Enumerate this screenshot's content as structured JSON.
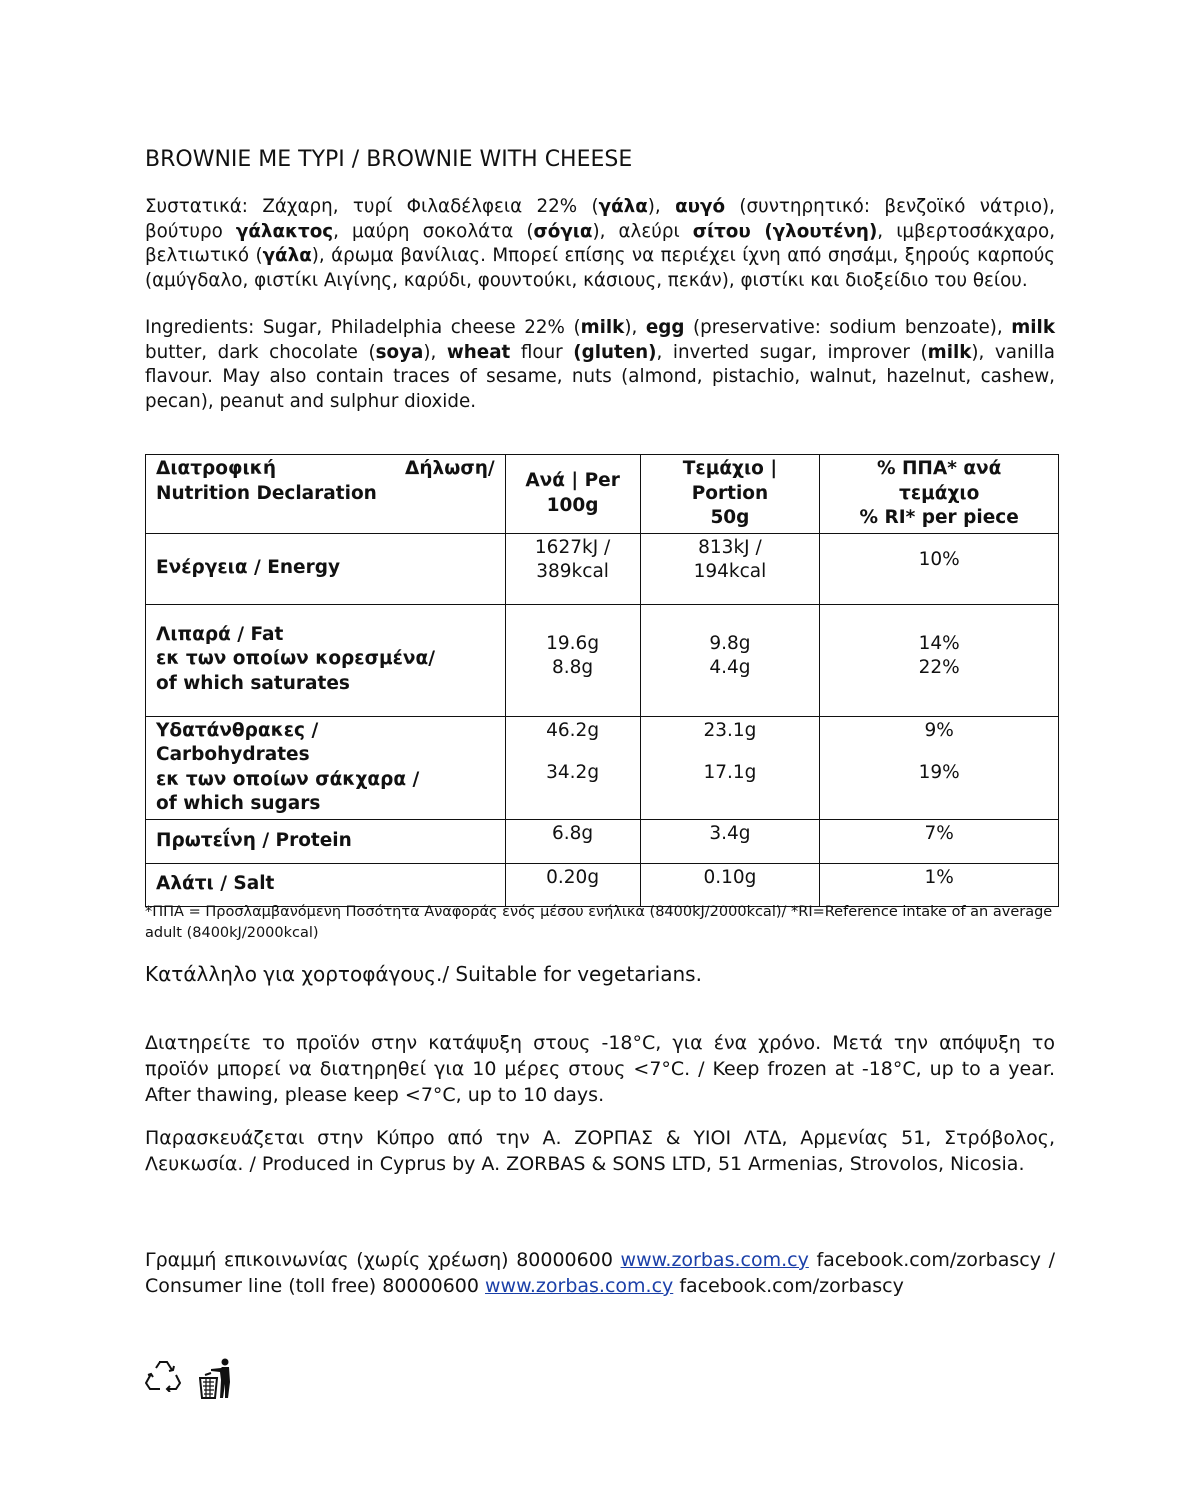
{
  "title": "BROWNIE ME TYPI / BROWNIE WITH CHEESE",
  "ingredients_gr": [
    {
      "t": "Συστατικά: Ζάχαρη, τυρί Φιλαδέλφεια 22% ("
    },
    {
      "t": "γάλα",
      "b": true
    },
    {
      "t": "), "
    },
    {
      "t": "αυγό",
      "b": true
    },
    {
      "t": " (συντηρητικό: βενζοϊκό νάτριο), βούτυρο "
    },
    {
      "t": "γάλακτος",
      "b": true
    },
    {
      "t": ", μαύρη σοκολάτα ("
    },
    {
      "t": "σόγια",
      "b": true
    },
    {
      "t": "), αλεύρι "
    },
    {
      "t": "σίτου (γλουτένη)",
      "b": true
    },
    {
      "t": ", ιμβερτοσάκχαρο, βελτιωτικό ("
    },
    {
      "t": "γάλα",
      "b": true
    },
    {
      "t": "), άρωμα βανίλιας. Μπορεί επίσης να περιέχει ίχνη από σησάμι, ξηρούς καρπούς (αμύγδαλο, φιστίκι Αιγίνης, καρύδι, φουντούκι, κάσιους, πεκάν), φιστίκι και διοξείδιο του θείου."
    }
  ],
  "ingredients_en": [
    {
      "t": "Ingredients: Sugar, Philadelphia cheese 22% ("
    },
    {
      "t": "milk",
      "b": true
    },
    {
      "t": "), "
    },
    {
      "t": "egg",
      "b": true
    },
    {
      "t": " (preservative: sodium benzoate), "
    },
    {
      "t": "milk",
      "b": true
    },
    {
      "t": " butter, dark chocolate ("
    },
    {
      "t": "soya",
      "b": true
    },
    {
      "t": "), "
    },
    {
      "t": "wheat",
      "b": true
    },
    {
      "t": " flour "
    },
    {
      "t": "(gluten)",
      "b": true
    },
    {
      "t": ", inverted sugar, improver ("
    },
    {
      "t": "milk",
      "b": true
    },
    {
      "t": "), vanilla flavour. May also contain traces of sesame, nuts (almond, pistachio, walnut, hazelnut, cashew, pecan), peanut and sulphur dioxide."
    }
  ],
  "table": {
    "header": {
      "col1_left": "Διατροφική",
      "col1_right": "Δήλωση/",
      "col1_line2": "Nutrition Declaration",
      "col2": [
        "Ανά | Per",
        "100g"
      ],
      "col3": [
        "Τεμάχιο |",
        "Portion",
        "50g"
      ],
      "col4": [
        "% ΠΠΑ* ανά",
        "τεμάχιο",
        "% RI* per piece"
      ]
    },
    "rows": [
      {
        "label": [
          "Ενέργεια / Energy"
        ],
        "per100": [
          "1627kJ /",
          "389kcal"
        ],
        "portion": [
          "813kJ /",
          "194kcal"
        ],
        "ri": [
          "10%"
        ]
      },
      {
        "label": [
          "Λιπαρά / Fat",
          "εκ των οποίων κορεσμένα/",
          "of which saturates"
        ],
        "per100": [
          "19.6g",
          "8.8g"
        ],
        "portion": [
          "9.8g",
          "4.4g"
        ],
        "ri": [
          "14%",
          "22%"
        ]
      },
      {
        "label": [
          "Υδατάνθρακες /",
          "Carbohydrates",
          "εκ των οποίων σάκχαρα /",
          "of which sugars"
        ],
        "per100": [
          "46.2g",
          "34.2g"
        ],
        "portion": [
          "23.1g",
          "17.1g"
        ],
        "ri": [
          "9%",
          "19%"
        ]
      },
      {
        "label": [
          "Πρωτεΐνη /  Protein"
        ],
        "per100": [
          "6.8g"
        ],
        "portion": [
          "3.4g"
        ],
        "ri": [
          "7%"
        ]
      },
      {
        "label": [
          "Αλάτι /  Salt"
        ],
        "per100": [
          "0.20g"
        ],
        "portion": [
          "0.10g"
        ],
        "ri": [
          "1%"
        ]
      }
    ]
  },
  "footnote": "*ΠΠΑ = Προσλαμβανόμενη Ποσότητα Αναφοράς ενός μέσου ενήλικα (8400kJ/2000kcal)/ *RI=Reference intake of an average adult (8400kJ/2000kcal)",
  "vegetarian": "Κατάλληλο για χορτοφάγους./ Suitable for vegetarians.",
  "storage": "Διατηρείτε το προϊόν στην κατάψυξη στους -18°C, για ένα χρόνο. Μετά την απόψυξη το προϊόν μπορεί να διατηρηθεί για 10 μέρες στους <7°C. / Keep frozen at -18°C, up to a year. After thawing, please keep <7°C, up to 10 days.",
  "producer": "Παρασκευάζεται στην Κύπρο από την Α. ΖΟΡΠΑΣ & ΥΙΟΙ ΛΤΔ, Αρμενίας 51, Στρόβολος, Λευκωσία. / Produced in Cyprus by A. ZORBAS & SONS LTD, 51 Armenias, Strovolos, Nicosia.",
  "contact": {
    "gr_text": "Γραμμή επικοινωνίας (χωρίς χρέωση) 80000600 ",
    "gr_link": "www.zorbas.com.cy",
    "mid_text": " facebook.com/zorbascy / Consumer line (toll free) 80000600 ",
    "en_link": "www.zorbas.com.cy",
    "end_text": " facebook.com/zorbascy",
    "link_color": "#1a3fa8"
  },
  "icons": [
    "recycle-icon",
    "tidyman-bin-icon"
  ]
}
